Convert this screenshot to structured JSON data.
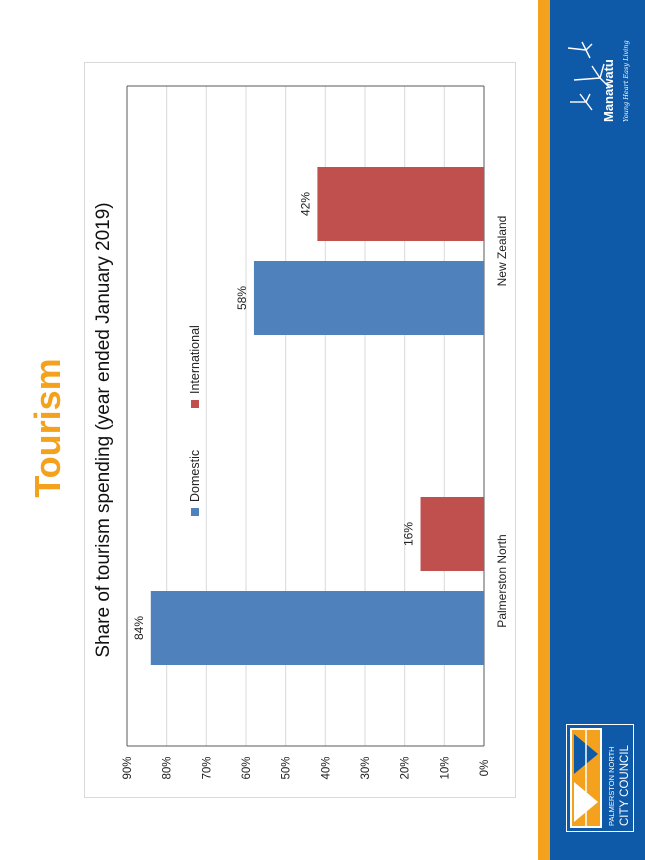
{
  "slide": {
    "title": "Tourism"
  },
  "branding": {
    "manawatu_name": "Manawatu",
    "manawatu_tagline": "Young Heart Easy Living",
    "council_line1": "PALMERSTON NORTH",
    "council_line2": "CITY COUNCIL",
    "colors": {
      "orange": "#f4a11d",
      "blue": "#0f5aa8"
    }
  },
  "chart_data": {
    "type": "bar",
    "orientation": "rotated-90",
    "title": "Share of tourism spending (year ended January 2019)",
    "categories": [
      "Palmerston North",
      "New Zealand"
    ],
    "series": [
      {
        "name": "Domestic",
        "color": "#4f81bd",
        "values": [
          84,
          58
        ],
        "labels": [
          "84%",
          "58%"
        ]
      },
      {
        "name": "International",
        "color": "#c0504d",
        "values": [
          16,
          42
        ],
        "labels": [
          "16%",
          "42%"
        ]
      }
    ],
    "ylim": [
      0,
      90
    ],
    "yticks": [
      0,
      10,
      20,
      30,
      40,
      50,
      60,
      70,
      80,
      90
    ],
    "ytick_labels": [
      "0%",
      "10%",
      "20%",
      "30%",
      "40%",
      "50%",
      "60%",
      "70%",
      "80%",
      "90%"
    ],
    "grid": true,
    "legend_position": "top"
  }
}
